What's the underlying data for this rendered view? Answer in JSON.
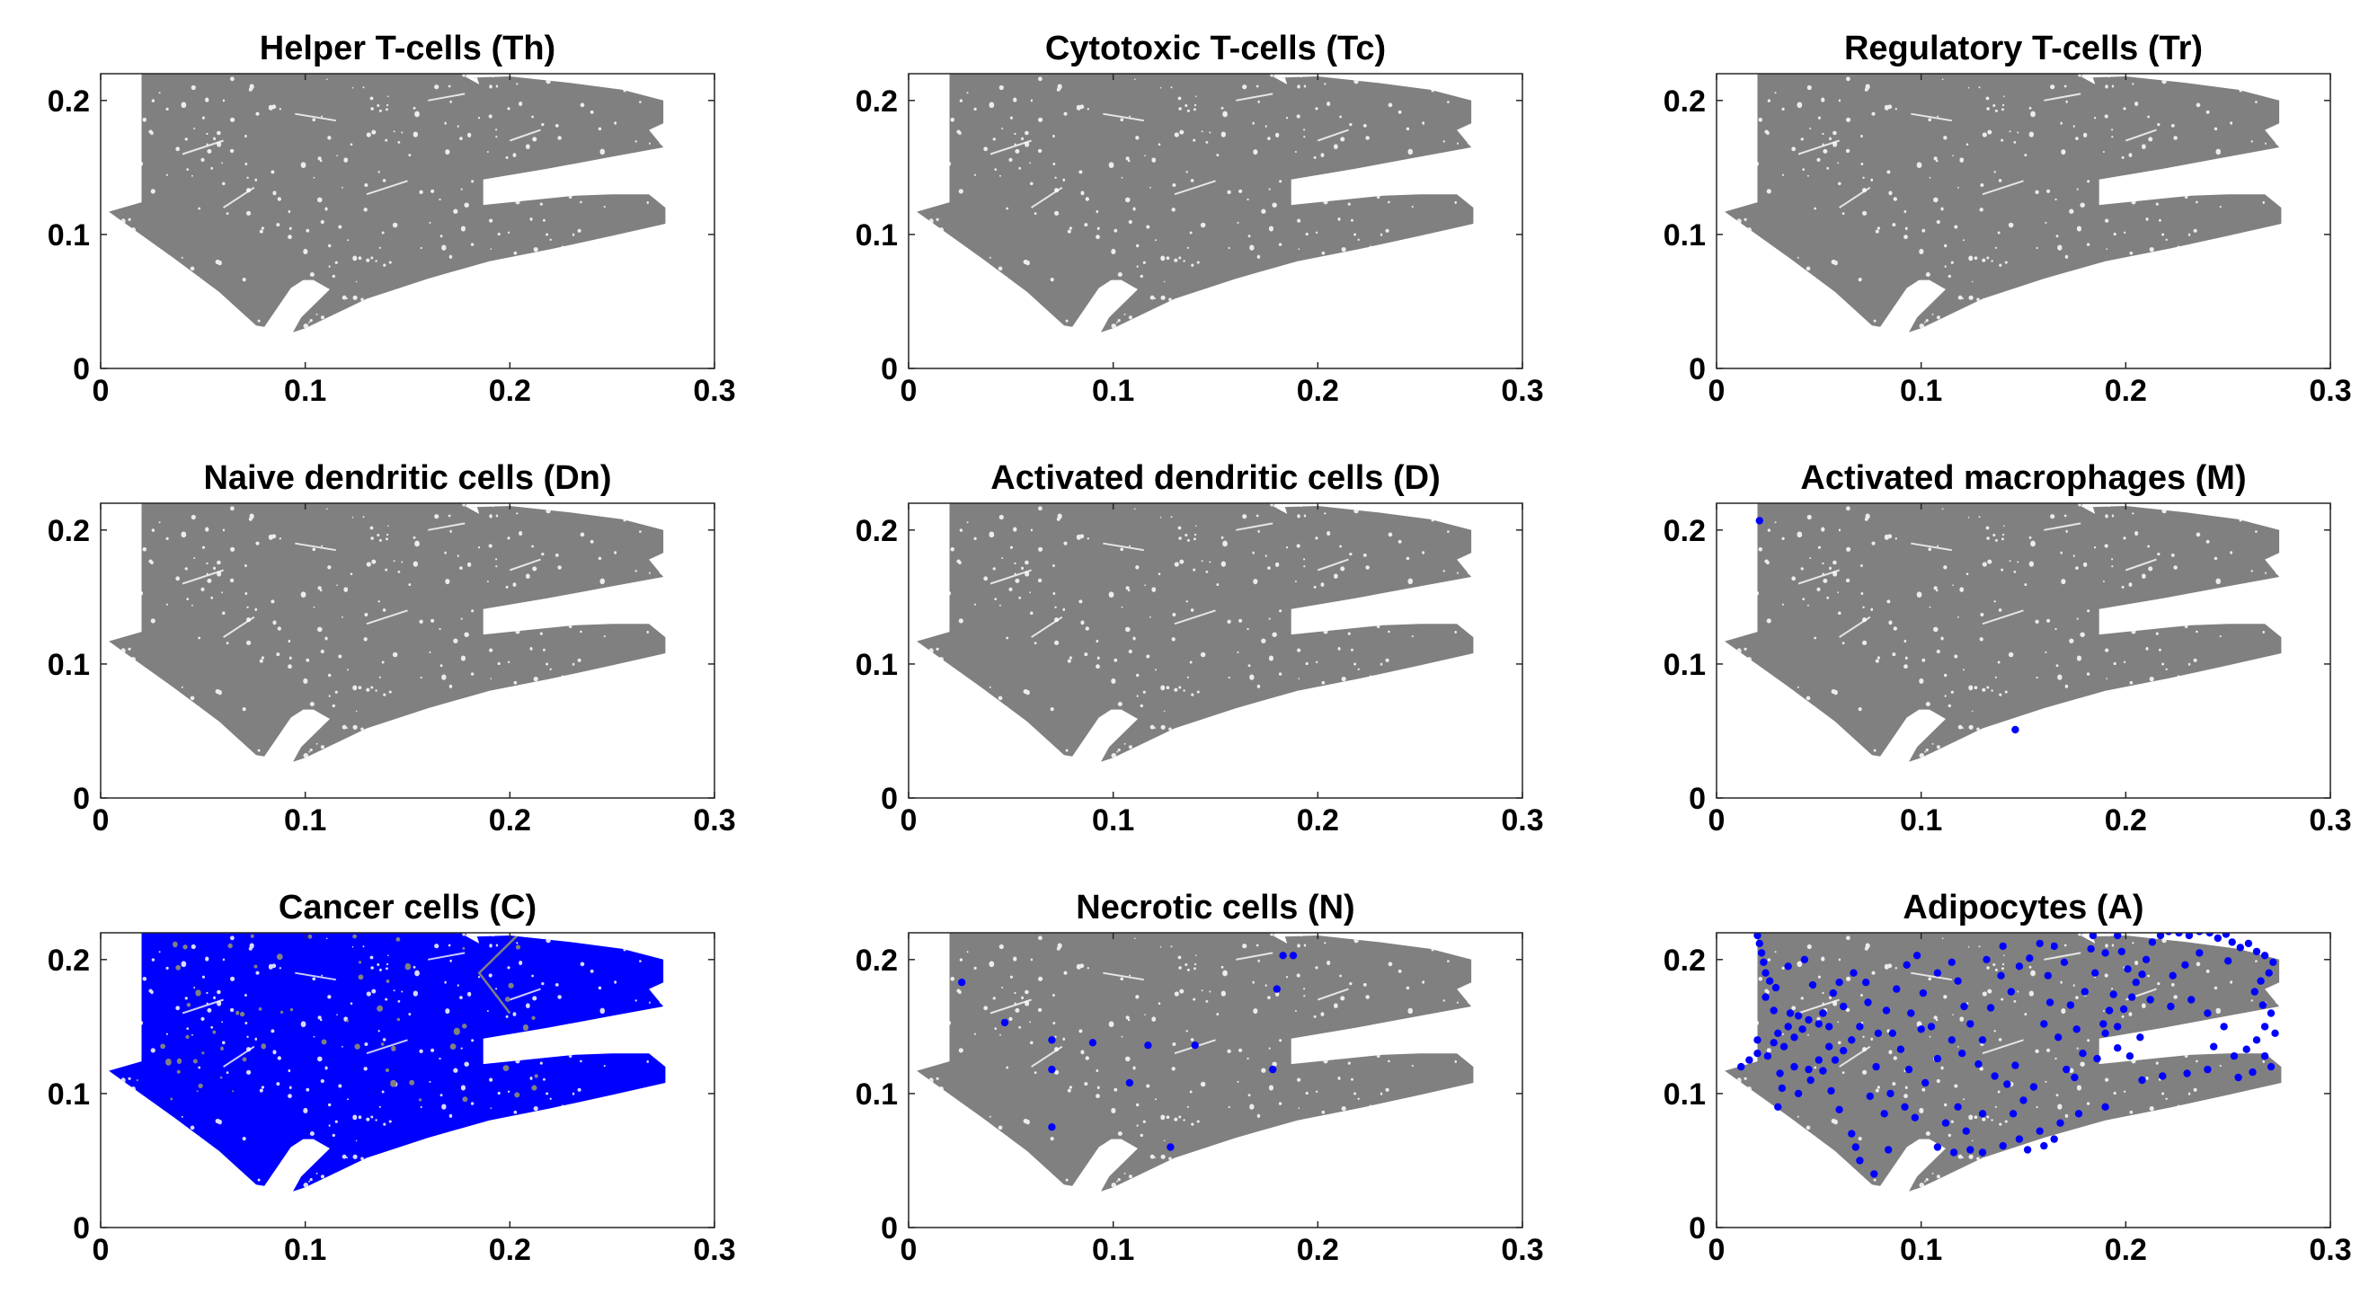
{
  "figure": {
    "background": "#ffffff"
  },
  "chart_data": [
    {
      "type": "scatter",
      "title": "Helper T-cells (Th)",
      "xlim": [
        0,
        0.3
      ],
      "ylim": [
        0,
        0.22
      ],
      "xticks": [
        "0",
        "0.1",
        "0.2",
        "0.3"
      ],
      "yticks": [
        "0",
        "0.1",
        "0.2"
      ],
      "grid": false,
      "tissue_color": "#808080",
      "cell_color": "#0000ff",
      "cell_coverage": "none",
      "cells": []
    },
    {
      "type": "scatter",
      "title": "Cytotoxic T-cells (Tc)",
      "xlim": [
        0,
        0.3
      ],
      "ylim": [
        0,
        0.22
      ],
      "xticks": [
        "0",
        "0.1",
        "0.2",
        "0.3"
      ],
      "yticks": [
        "0",
        "0.1",
        "0.2"
      ],
      "grid": false,
      "tissue_color": "#808080",
      "cell_color": "#0000ff",
      "cell_coverage": "none",
      "cells": []
    },
    {
      "type": "scatter",
      "title": "Regulatory T-cells (Tr)",
      "xlim": [
        0,
        0.3
      ],
      "ylim": [
        0,
        0.22
      ],
      "xticks": [
        "0",
        "0.1",
        "0.2",
        "0.3"
      ],
      "yticks": [
        "0",
        "0.1",
        "0.2"
      ],
      "grid": false,
      "tissue_color": "#808080",
      "cell_color": "#0000ff",
      "cell_coverage": "none",
      "cells": []
    },
    {
      "type": "scatter",
      "title": "Naive dendritic cells (Dn)",
      "xlim": [
        0,
        0.3
      ],
      "ylim": [
        0,
        0.22
      ],
      "xticks": [
        "0",
        "0.1",
        "0.2",
        "0.3"
      ],
      "yticks": [
        "0",
        "0.1",
        "0.2"
      ],
      "grid": false,
      "tissue_color": "#808080",
      "cell_color": "#0000ff",
      "cell_coverage": "none",
      "cells": []
    },
    {
      "type": "scatter",
      "title": "Activated dendritic cells (D)",
      "xlim": [
        0,
        0.3
      ],
      "ylim": [
        0,
        0.22
      ],
      "xticks": [
        "0",
        "0.1",
        "0.2",
        "0.3"
      ],
      "yticks": [
        "0",
        "0.1",
        "0.2"
      ],
      "grid": false,
      "tissue_color": "#808080",
      "cell_color": "#0000ff",
      "cell_coverage": "none",
      "cells": []
    },
    {
      "type": "scatter",
      "title": "Activated macrophages (M)",
      "xlim": [
        0,
        0.3
      ],
      "ylim": [
        0,
        0.22
      ],
      "xticks": [
        "0",
        "0.1",
        "0.2",
        "0.3"
      ],
      "yticks": [
        "0",
        "0.1",
        "0.2"
      ],
      "grid": false,
      "tissue_color": "#808080",
      "cell_color": "#0000ff",
      "cell_coverage": "sparse",
      "cells": [
        [
          0.021,
          0.207
        ],
        [
          0.146,
          0.051
        ]
      ]
    },
    {
      "type": "scatter",
      "title": "Cancer cells (C)",
      "xlim": [
        0,
        0.3
      ],
      "ylim": [
        0,
        0.22
      ],
      "xticks": [
        "0",
        "0.1",
        "0.2",
        "0.3"
      ],
      "yticks": [
        "0",
        "0.1",
        "0.2"
      ],
      "grid": false,
      "tissue_color": "#808080",
      "cell_color": "#0000ff",
      "cell_coverage": "full",
      "cells": []
    },
    {
      "type": "scatter",
      "title": "Necrotic cells (N)",
      "xlim": [
        0,
        0.3
      ],
      "ylim": [
        0,
        0.22
      ],
      "xticks": [
        "0",
        "0.1",
        "0.2",
        "0.3"
      ],
      "yticks": [
        "0",
        "0.1",
        "0.2"
      ],
      "grid": false,
      "tissue_color": "#808080",
      "cell_color": "#0000ff",
      "cell_coverage": "sparse",
      "cells": [
        [
          0.026,
          0.183
        ],
        [
          0.047,
          0.153
        ],
        [
          0.07,
          0.14
        ],
        [
          0.07,
          0.118
        ],
        [
          0.07,
          0.075
        ],
        [
          0.09,
          0.138
        ],
        [
          0.108,
          0.108
        ],
        [
          0.117,
          0.136
        ],
        [
          0.128,
          0.06
        ],
        [
          0.14,
          0.136
        ],
        [
          0.178,
          0.118
        ],
        [
          0.18,
          0.178
        ],
        [
          0.183,
          0.203
        ],
        [
          0.188,
          0.203
        ]
      ]
    },
    {
      "type": "scatter",
      "title": "Adipocytes (A)",
      "xlim": [
        0,
        0.3
      ],
      "ylim": [
        0,
        0.22
      ],
      "xticks": [
        "0",
        "0.1",
        "0.2",
        "0.3"
      ],
      "yticks": [
        "0",
        "0.1",
        "0.2"
      ],
      "grid": false,
      "tissue_color": "#808080",
      "cell_color": "#0000ff",
      "cell_coverage": "sparse",
      "cells": [
        [
          0.02,
          0.218
        ],
        [
          0.021,
          0.212
        ],
        [
          0.022,
          0.205
        ],
        [
          0.023,
          0.198
        ],
        [
          0.024,
          0.19
        ],
        [
          0.026,
          0.184
        ],
        [
          0.029,
          0.179
        ],
        [
          0.012,
          0.12
        ],
        [
          0.016,
          0.125
        ],
        [
          0.02,
          0.13
        ],
        [
          0.025,
          0.128
        ],
        [
          0.028,
          0.138
        ],
        [
          0.02,
          0.14
        ],
        [
          0.03,
          0.145
        ],
        [
          0.035,
          0.15
        ],
        [
          0.04,
          0.158
        ],
        [
          0.036,
          0.16
        ],
        [
          0.045,
          0.155
        ],
        [
          0.05,
          0.152
        ],
        [
          0.052,
          0.16
        ],
        [
          0.055,
          0.15
        ],
        [
          0.042,
          0.148
        ],
        [
          0.038,
          0.142
        ],
        [
          0.033,
          0.135
        ],
        [
          0.031,
          0.115
        ],
        [
          0.032,
          0.104
        ],
        [
          0.03,
          0.09
        ],
        [
          0.04,
          0.1
        ],
        [
          0.046,
          0.11
        ],
        [
          0.056,
          0.102
        ],
        [
          0.06,
          0.088
        ],
        [
          0.066,
          0.07
        ],
        [
          0.068,
          0.06
        ],
        [
          0.07,
          0.05
        ],
        [
          0.077,
          0.04
        ],
        [
          0.084,
          0.058
        ],
        [
          0.066,
          0.14
        ],
        [
          0.07,
          0.15
        ],
        [
          0.062,
          0.165
        ],
        [
          0.06,
          0.183
        ],
        [
          0.047,
          0.181
        ],
        [
          0.078,
          0.12
        ],
        [
          0.079,
          0.145
        ],
        [
          0.083,
          0.162
        ],
        [
          0.088,
          0.178
        ],
        [
          0.093,
          0.196
        ],
        [
          0.098,
          0.203
        ],
        [
          0.105,
          0.15
        ],
        [
          0.09,
          0.133
        ],
        [
          0.094,
          0.118
        ],
        [
          0.102,
          0.108
        ],
        [
          0.108,
          0.126
        ],
        [
          0.115,
          0.198
        ],
        [
          0.118,
          0.184
        ],
        [
          0.121,
          0.165
        ],
        [
          0.124,
          0.152
        ],
        [
          0.13,
          0.14
        ],
        [
          0.128,
          0.122
        ],
        [
          0.136,
          0.113
        ],
        [
          0.142,
          0.107
        ],
        [
          0.146,
          0.121
        ],
        [
          0.134,
          0.164
        ],
        [
          0.139,
          0.188
        ],
        [
          0.144,
          0.176
        ],
        [
          0.153,
          0.201
        ],
        [
          0.158,
          0.212
        ],
        [
          0.162,
          0.188
        ],
        [
          0.163,
          0.168
        ],
        [
          0.16,
          0.152
        ],
        [
          0.167,
          0.142
        ],
        [
          0.171,
          0.118
        ],
        [
          0.175,
          0.112
        ],
        [
          0.179,
          0.13
        ],
        [
          0.176,
          0.148
        ],
        [
          0.173,
          0.166
        ],
        [
          0.18,
          0.176
        ],
        [
          0.185,
          0.19
        ],
        [
          0.183,
          0.208
        ],
        [
          0.184,
          0.218
        ],
        [
          0.19,
          0.205
        ],
        [
          0.196,
          0.218
        ],
        [
          0.198,
          0.206
        ],
        [
          0.201,
          0.193
        ],
        [
          0.194,
          0.174
        ],
        [
          0.192,
          0.162
        ],
        [
          0.189,
          0.152
        ],
        [
          0.19,
          0.145
        ],
        [
          0.196,
          0.15
        ],
        [
          0.199,
          0.163
        ],
        [
          0.203,
          0.172
        ],
        [
          0.205,
          0.183
        ],
        [
          0.208,
          0.189
        ],
        [
          0.21,
          0.2
        ],
        [
          0.213,
          0.213
        ],
        [
          0.217,
          0.218
        ],
        [
          0.221,
          0.221
        ],
        [
          0.226,
          0.22
        ],
        [
          0.231,
          0.218
        ],
        [
          0.236,
          0.221
        ],
        [
          0.241,
          0.22
        ],
        [
          0.245,
          0.216
        ],
        [
          0.249,
          0.219
        ],
        [
          0.252,
          0.213
        ],
        [
          0.256,
          0.209
        ],
        [
          0.26,
          0.212
        ],
        [
          0.264,
          0.206
        ],
        [
          0.268,
          0.203
        ],
        [
          0.272,
          0.198
        ],
        [
          0.27,
          0.19
        ],
        [
          0.266,
          0.184
        ],
        [
          0.263,
          0.176
        ],
        [
          0.267,
          0.166
        ],
        [
          0.271,
          0.16
        ],
        [
          0.268,
          0.15
        ],
        [
          0.273,
          0.145
        ],
        [
          0.264,
          0.14
        ],
        [
          0.259,
          0.133
        ],
        [
          0.268,
          0.128
        ],
        [
          0.271,
          0.12
        ],
        [
          0.262,
          0.116
        ],
        [
          0.255,
          0.112
        ],
        [
          0.24,
          0.118
        ],
        [
          0.23,
          0.115
        ],
        [
          0.218,
          0.113
        ],
        [
          0.208,
          0.11
        ],
        [
          0.19,
          0.09
        ],
        [
          0.177,
          0.085
        ],
        [
          0.168,
          0.078
        ],
        [
          0.158,
          0.072
        ],
        [
          0.148,
          0.066
        ],
        [
          0.152,
          0.058
        ],
        [
          0.16,
          0.061
        ],
        [
          0.165,
          0.066
        ],
        [
          0.14,
          0.061
        ],
        [
          0.13,
          0.056
        ],
        [
          0.124,
          0.058
        ],
        [
          0.116,
          0.056
        ],
        [
          0.108,
          0.06
        ],
        [
          0.075,
          0.098
        ],
        [
          0.082,
          0.085
        ],
        [
          0.05,
          0.125
        ],
        [
          0.055,
          0.135
        ],
        [
          0.058,
          0.125
        ],
        [
          0.062,
          0.132
        ],
        [
          0.045,
          0.118
        ],
        [
          0.038,
          0.12
        ],
        [
          0.052,
          0.117
        ],
        [
          0.085,
          0.1
        ],
        [
          0.092,
          0.09
        ],
        [
          0.097,
          0.082
        ],
        [
          0.15,
          0.095
        ],
        [
          0.145,
          0.085
        ],
        [
          0.155,
          0.105
        ],
        [
          0.118,
          0.09
        ],
        [
          0.112,
          0.078
        ],
        [
          0.122,
          0.072
        ],
        [
          0.13,
          0.085
        ],
        [
          0.024,
          0.172
        ],
        [
          0.028,
          0.162
        ],
        [
          0.086,
          0.145
        ],
        [
          0.074,
          0.168
        ],
        [
          0.101,
          0.175
        ],
        [
          0.108,
          0.19
        ],
        [
          0.212,
          0.17
        ],
        [
          0.222,
          0.165
        ],
        [
          0.232,
          0.17
        ],
        [
          0.24,
          0.16
        ],
        [
          0.248,
          0.15
        ],
        [
          0.243,
          0.135
        ],
        [
          0.253,
          0.128
        ],
        [
          0.229,
          0.196
        ],
        [
          0.223,
          0.188
        ],
        [
          0.236,
          0.205
        ],
        [
          0.25,
          0.199
        ],
        [
          0.196,
          0.134
        ],
        [
          0.202,
          0.128
        ],
        [
          0.186,
          0.126
        ],
        [
          0.207,
          0.142
        ],
        [
          0.17,
          0.198
        ],
        [
          0.165,
          0.21
        ],
        [
          0.132,
          0.2
        ],
        [
          0.14,
          0.21
        ],
        [
          0.148,
          0.195
        ],
        [
          0.057,
          0.175
        ],
        [
          0.067,
          0.19
        ],
        [
          0.073,
          0.183
        ],
        [
          0.043,
          0.2
        ],
        [
          0.035,
          0.195
        ],
        [
          0.115,
          0.14
        ],
        [
          0.12,
          0.13
        ],
        [
          0.1,
          0.148
        ],
        [
          0.095,
          0.16
        ]
      ]
    }
  ]
}
